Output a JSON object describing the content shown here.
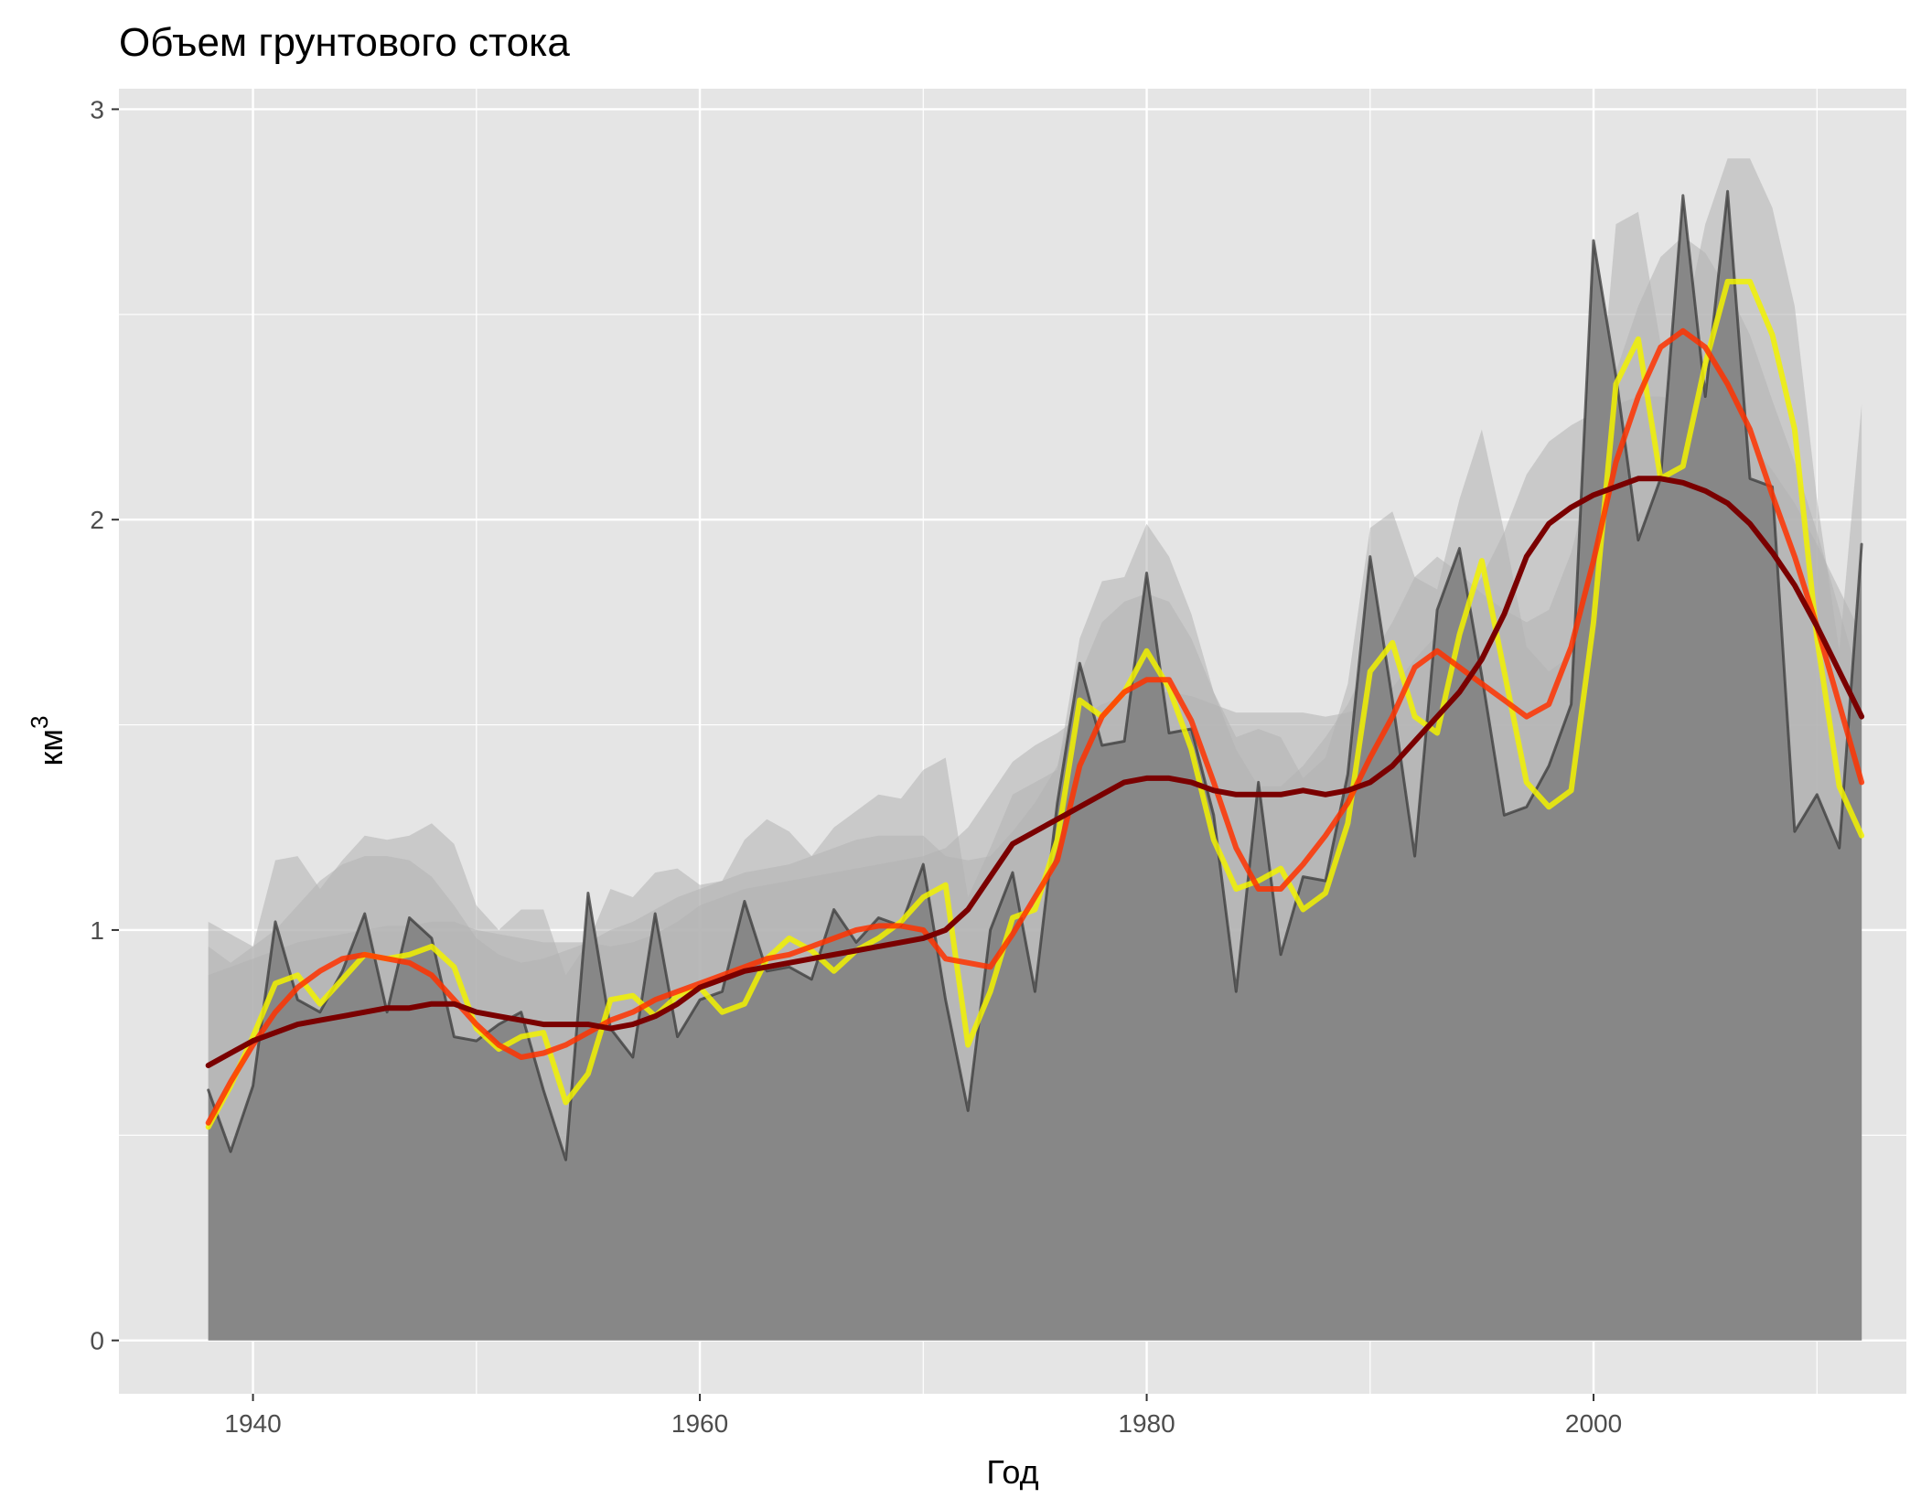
{
  "chart_data": {
    "type": "area",
    "title": "Объем грунтового стока",
    "xlabel": "Год",
    "ylabel_main": "км",
    "ylabel_superscript": "3",
    "xlim": [
      1934,
      2014
    ],
    "ylim": [
      -0.13,
      3.05
    ],
    "x_ticks": [
      1940,
      1960,
      1980,
      2000
    ],
    "y_ticks": [
      0,
      1,
      2,
      3
    ],
    "x_tick_labels": [
      "1940",
      "1960",
      "1980",
      "2000"
    ],
    "y_tick_labels": [
      "0",
      "1",
      "2",
      "3"
    ],
    "grid": true,
    "legend": "none",
    "colors": {
      "panel_bg": "#e5e5e5",
      "grid": "#ffffff",
      "area_fill": "#878787",
      "band_fill": "#b3b3b3",
      "raw_line": "#3a3a3a",
      "smooth_short": "#f2f200",
      "smooth_mid": "#ff3300",
      "smooth_long": "#7a0000"
    },
    "x": [
      1938,
      1939,
      1940,
      1941,
      1942,
      1943,
      1944,
      1945,
      1946,
      1947,
      1948,
      1949,
      1950,
      1951,
      1952,
      1953,
      1954,
      1955,
      1956,
      1957,
      1958,
      1959,
      1960,
      1961,
      1962,
      1963,
      1964,
      1965,
      1966,
      1967,
      1968,
      1969,
      1970,
      1971,
      1972,
      1973,
      1974,
      1975,
      1976,
      1977,
      1978,
      1979,
      1980,
      1981,
      1982,
      1983,
      1984,
      1985,
      1986,
      1987,
      1988,
      1989,
      1990,
      1991,
      1992,
      1993,
      1994,
      1995,
      1996,
      1997,
      1998,
      1999,
      2000,
      2001,
      2002,
      2003,
      2004,
      2005,
      2006,
      2007,
      2008,
      2009,
      2010,
      2011,
      2012
    ],
    "series": [
      {
        "role": "raw",
        "values": [
          0.61,
          0.46,
          0.62,
          1.02,
          0.83,
          0.8,
          0.9,
          1.04,
          0.8,
          1.03,
          0.98,
          0.74,
          0.73,
          0.77,
          0.8,
          0.61,
          0.44,
          1.09,
          0.76,
          0.69,
          1.04,
          0.74,
          0.83,
          0.85,
          1.07,
          0.9,
          0.91,
          0.88,
          1.05,
          0.97,
          1.03,
          1.01,
          1.16,
          0.83,
          0.56,
          1.0,
          1.14,
          0.85,
          1.31,
          1.65,
          1.45,
          1.46,
          1.87,
          1.48,
          1.49,
          1.28,
          0.85,
          1.36,
          0.94,
          1.13,
          1.12,
          1.38,
          1.91,
          1.56,
          1.18,
          1.78,
          1.93,
          1.62,
          1.28,
          1.3,
          1.4,
          1.55,
          2.68,
          2.35,
          1.95,
          2.1,
          2.79,
          2.3,
          2.8,
          2.1,
          2.08,
          1.24,
          1.33,
          1.2,
          1.94
        ]
      },
      {
        "role": "smooth_short",
        "values": [
          0.52,
          0.62,
          0.74,
          0.87,
          0.89,
          0.82,
          0.88,
          0.94,
          0.93,
          0.94,
          0.96,
          0.91,
          0.76,
          0.71,
          0.74,
          0.75,
          0.58,
          0.65,
          0.83,
          0.84,
          0.79,
          0.84,
          0.86,
          0.8,
          0.82,
          0.93,
          0.98,
          0.95,
          0.9,
          0.95,
          0.98,
          1.02,
          1.08,
          1.11,
          0.72,
          0.85,
          1.03,
          1.05,
          1.22,
          1.56,
          1.52,
          1.58,
          1.68,
          1.59,
          1.44,
          1.22,
          1.1,
          1.12,
          1.15,
          1.05,
          1.09,
          1.26,
          1.63,
          1.7,
          1.52,
          1.48,
          1.72,
          1.9,
          1.63,
          1.36,
          1.3,
          1.34,
          1.75,
          2.33,
          2.44,
          2.1,
          2.13,
          2.38,
          2.58,
          2.58,
          2.45,
          2.22,
          1.71,
          1.35,
          1.23
        ]
      },
      {
        "role": "smooth_mid",
        "values": [
          0.53,
          0.63,
          0.72,
          0.8,
          0.86,
          0.9,
          0.93,
          0.94,
          0.93,
          0.92,
          0.89,
          0.83,
          0.77,
          0.72,
          0.69,
          0.7,
          0.72,
          0.75,
          0.78,
          0.8,
          0.83,
          0.85,
          0.87,
          0.89,
          0.91,
          0.93,
          0.94,
          0.96,
          0.98,
          1.0,
          1.01,
          1.01,
          1.0,
          0.93,
          0.92,
          0.91,
          0.99,
          1.08,
          1.17,
          1.4,
          1.52,
          1.58,
          1.61,
          1.61,
          1.51,
          1.36,
          1.2,
          1.1,
          1.1,
          1.16,
          1.23,
          1.31,
          1.42,
          1.52,
          1.64,
          1.68,
          1.64,
          1.6,
          1.56,
          1.52,
          1.55,
          1.69,
          1.9,
          2.14,
          2.3,
          2.42,
          2.46,
          2.42,
          2.33,
          2.22,
          2.06,
          1.91,
          1.74,
          1.55,
          1.36
        ]
      },
      {
        "role": "smooth_long",
        "values": [
          0.67,
          0.7,
          0.73,
          0.75,
          0.77,
          0.78,
          0.79,
          0.8,
          0.81,
          0.81,
          0.82,
          0.82,
          0.8,
          0.79,
          0.78,
          0.77,
          0.77,
          0.77,
          0.76,
          0.77,
          0.79,
          0.82,
          0.86,
          0.88,
          0.9,
          0.91,
          0.92,
          0.93,
          0.94,
          0.95,
          0.96,
          0.97,
          0.98,
          1.0,
          1.05,
          1.13,
          1.21,
          1.24,
          1.27,
          1.3,
          1.33,
          1.36,
          1.37,
          1.37,
          1.36,
          1.34,
          1.33,
          1.33,
          1.33,
          1.34,
          1.33,
          1.34,
          1.36,
          1.4,
          1.46,
          1.52,
          1.58,
          1.66,
          1.77,
          1.91,
          1.99,
          2.03,
          2.06,
          2.08,
          2.1,
          2.1,
          2.09,
          2.07,
          2.04,
          1.99,
          1.92,
          1.84,
          1.74,
          1.63,
          1.52
        ]
      }
    ],
    "bands": [
      {
        "role": "outer",
        "values": [
          1.02,
          0.99,
          0.96,
          1.17,
          1.18,
          1.1,
          1.17,
          1.23,
          1.22,
          1.23,
          1.26,
          1.21,
          1.06,
          1.0,
          1.05,
          1.05,
          0.89,
          0.97,
          1.1,
          1.08,
          1.14,
          1.15,
          1.11,
          1.12,
          1.22,
          1.27,
          1.24,
          1.18,
          1.25,
          1.29,
          1.33,
          1.32,
          1.39,
          1.42,
          1.08,
          1.2,
          1.33,
          1.36,
          1.39,
          1.71,
          1.85,
          1.86,
          1.99,
          1.91,
          1.77,
          1.58,
          1.47,
          1.49,
          1.47,
          1.37,
          1.42,
          1.6,
          1.98,
          2.02,
          1.86,
          1.83,
          2.05,
          2.22,
          1.97,
          1.69,
          1.63,
          1.67,
          2.1,
          2.72,
          2.75,
          2.43,
          2.46,
          2.72,
          2.88,
          2.88,
          2.76,
          2.52,
          2.05,
          1.68,
          2.28
        ]
      },
      {
        "role": "mid",
        "values": [
          0.96,
          0.92,
          0.96,
          1.0,
          1.06,
          1.12,
          1.16,
          1.18,
          1.18,
          1.17,
          1.13,
          1.06,
          0.98,
          0.94,
          0.92,
          0.93,
          0.95,
          0.97,
          1.0,
          1.02,
          1.05,
          1.08,
          1.1,
          1.12,
          1.14,
          1.15,
          1.16,
          1.18,
          1.2,
          1.22,
          1.23,
          1.23,
          1.23,
          1.18,
          1.17,
          1.18,
          1.24,
          1.31,
          1.4,
          1.62,
          1.75,
          1.8,
          1.82,
          1.8,
          1.71,
          1.58,
          1.44,
          1.35,
          1.35,
          1.4,
          1.47,
          1.55,
          1.66,
          1.75,
          1.86,
          1.91,
          1.87,
          1.82,
          1.78,
          1.75,
          1.78,
          1.92,
          2.13,
          2.36,
          2.52,
          2.64,
          2.69,
          2.65,
          2.56,
          2.45,
          2.29,
          2.14,
          1.97,
          1.78,
          1.59
        ]
      },
      {
        "role": "inner",
        "values": [
          0.89,
          0.91,
          0.93,
          0.95,
          0.97,
          0.98,
          0.99,
          1.0,
          1.01,
          1.01,
          1.02,
          1.02,
          1.0,
          0.99,
          0.98,
          0.97,
          0.97,
          0.97,
          0.96,
          0.97,
          0.99,
          1.02,
          1.06,
          1.08,
          1.1,
          1.11,
          1.12,
          1.13,
          1.14,
          1.15,
          1.16,
          1.17,
          1.18,
          1.2,
          1.25,
          1.33,
          1.41,
          1.45,
          1.48,
          1.52,
          1.55,
          1.57,
          1.58,
          1.58,
          1.57,
          1.55,
          1.53,
          1.53,
          1.53,
          1.53,
          1.52,
          1.53,
          1.55,
          1.59,
          1.66,
          1.72,
          1.78,
          1.86,
          1.97,
          2.11,
          2.19,
          2.23,
          2.26,
          2.28,
          2.3,
          2.3,
          2.29,
          2.27,
          2.24,
          2.19,
          2.12,
          2.04,
          1.94,
          1.83,
          1.72
        ]
      }
    ]
  }
}
